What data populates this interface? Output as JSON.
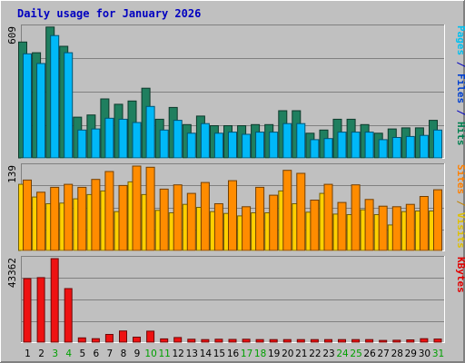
{
  "chart_data": {
    "type": "bar",
    "title": "Daily usage for January 2026",
    "categories": [
      "1",
      "2",
      "3",
      "4",
      "5",
      "6",
      "7",
      "8",
      "9",
      "10",
      "11",
      "12",
      "13",
      "14",
      "15",
      "16",
      "17",
      "18",
      "19",
      "20",
      "21",
      "22",
      "23",
      "24",
      "25",
      "26",
      "27",
      "28",
      "29",
      "30",
      "31"
    ],
    "weekend_days": [
      "3",
      "4",
      "10",
      "11",
      "17",
      "18",
      "24",
      "25",
      "31"
    ],
    "panels": [
      {
        "name": "hits-files-pages",
        "ymax": 609,
        "ymax_label": "609",
        "right_labels": [
          {
            "text": "Pages",
            "color": "#00C0F0"
          },
          {
            "text": " / ",
            "color": "#0000C0"
          },
          {
            "text": "Files",
            "color": "#0040D0"
          },
          {
            "text": " / ",
            "color": "#0000C0"
          },
          {
            "text": "Hits",
            "color": "#008050"
          }
        ],
        "series": [
          {
            "name": "Hits",
            "color": "#1F7F5F",
            "values": [
              540,
              490,
              610,
              520,
              190,
              200,
              275,
              250,
              265,
              325,
              180,
              235,
              155,
              195,
              150,
              150,
              150,
              155,
              155,
              220,
              220,
              115,
              130,
              180,
              180,
              155,
              115,
              135,
              140,
              140,
              175
            ]
          },
          {
            "name": "Files",
            "color": "#00B8F8",
            "values": [
              485,
              440,
              570,
              490,
              130,
              135,
              185,
              180,
              165,
              240,
              130,
              175,
              115,
              160,
              115,
              120,
              110,
              120,
              120,
              160,
              160,
              85,
              90,
              120,
              120,
              120,
              85,
              95,
              100,
              105,
              130
            ]
          },
          {
            "name": "Pages",
            "color": "#00C8F8",
            "values": [
              0,
              0,
              0,
              0,
              0,
              0,
              0,
              0,
              0,
              0,
              0,
              0,
              0,
              0,
              0,
              0,
              0,
              0,
              0,
              0,
              0,
              0,
              0,
              0,
              0,
              0,
              0,
              0,
              0,
              0,
              0
            ]
          }
        ]
      },
      {
        "name": "visits-sites",
        "ymax": 139,
        "ymax_label": "139",
        "right_labels": [
          {
            "text": "Sites",
            "color": "#FF8000"
          },
          {
            "text": " / ",
            "color": "#C08000"
          },
          {
            "text": "Visits",
            "color": "#E0C000"
          }
        ],
        "series": [
          {
            "name": "Visits",
            "color": "#FFD000",
            "values": [
              109,
              88,
              77,
              78,
              85,
              92,
              98,
              64,
              113,
              92,
              66,
              62,
              76,
              71,
              64,
              61,
              57,
              62,
              62,
              98,
              77,
              63,
              94,
              60,
              59,
              67,
              59,
              42,
              64,
              65,
              65
            ]
          },
          {
            "name": "Sites",
            "color": "#FF8C00",
            "values": [
              116,
              96,
              104,
              109,
              104,
              117,
              130,
              107,
              139,
              137,
              101,
              108,
              94,
              112,
              77,
              115,
              72,
              104,
              91,
              132,
              127,
              83,
              109,
              79,
              108,
              84,
              73,
              72,
              76,
              89,
              100
            ]
          }
        ]
      },
      {
        "name": "kbytes",
        "ymax": 43362,
        "ymax_label": "43362",
        "right_labels": [
          {
            "text": "KBytes",
            "color": "#E00000"
          }
        ],
        "series": [
          {
            "name": "KBytes",
            "color": "#EE1111",
            "values": [
              33000,
              33500,
              43362,
              27800,
              2200,
              1800,
              4000,
              5800,
              2600,
              5700,
              1700,
              2400,
              1500,
              1300,
              1500,
              1400,
              1500,
              1300,
              1300,
              1300,
              1300,
              1300,
              1300,
              1300,
              1300,
              1300,
              900,
              1000,
              1200,
              1800,
              1600
            ]
          }
        ]
      }
    ],
    "grid": true
  }
}
